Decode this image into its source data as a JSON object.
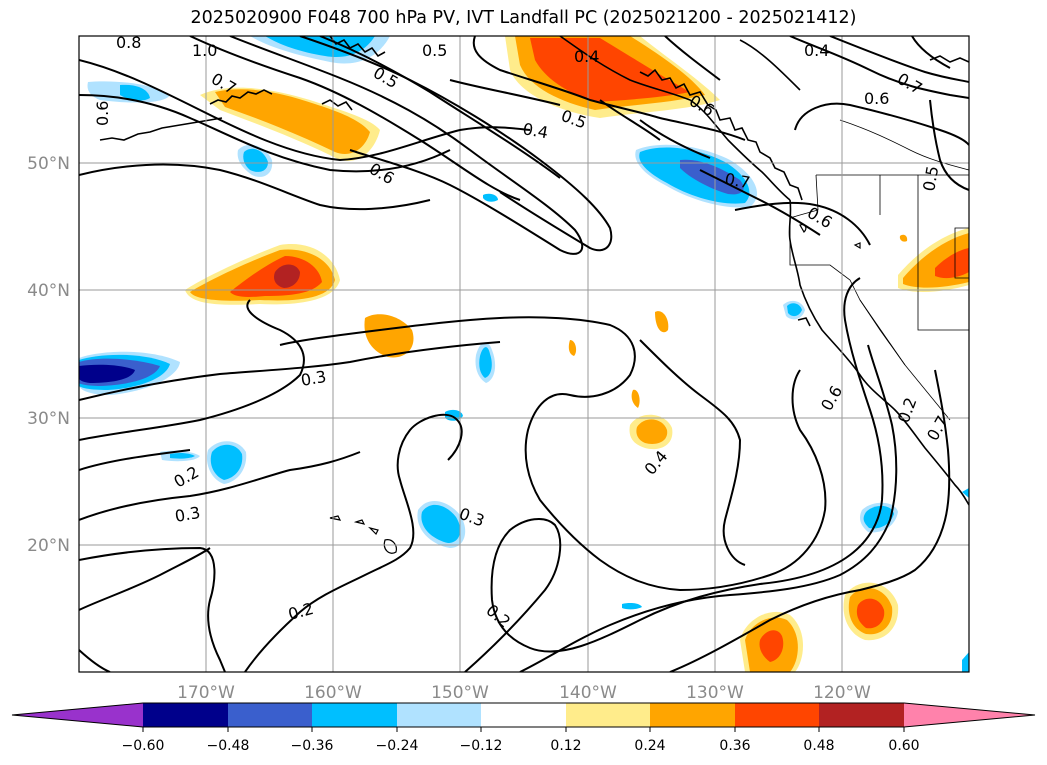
{
  "title": "2025020900 F048 700 hPa PV, IVT Landfall PC (2025021200 - 2025021412)",
  "map": {
    "lon_labels": [
      "170°W",
      "160°W",
      "150°W",
      "140°W",
      "130°W",
      "120°W"
    ],
    "lat_labels": [
      "50°N",
      "40°N",
      "30°N",
      "20°N"
    ],
    "contour_labels": [
      "0.8",
      "1.0",
      "0.5",
      "0.4",
      "0.4",
      "0.7",
      "0.6",
      "0.6",
      "0.7",
      "0.5",
      "0.4",
      "0.5",
      "0.6",
      "0.7",
      "0.6",
      "0.5",
      "0.6",
      "0.3",
      "0.2",
      "0.3",
      "0.3",
      "0.2",
      "0.2",
      "0.4",
      "0.6",
      "0.2",
      "0.7"
    ]
  },
  "colorbar": {
    "ticks": [
      "−0.60",
      "−0.48",
      "−0.36",
      "−0.24",
      "−0.12",
      "0.12",
      "0.24",
      "0.36",
      "0.48",
      "0.60"
    ],
    "colors": [
      "#9932cc",
      "#00008b",
      "#3a5fcd",
      "#00bfff",
      "#b0e2ff",
      "#ffffff",
      "#ffec8b",
      "#ffa500",
      "#ff4500",
      "#b22222",
      "#ff82ab"
    ]
  },
  "shading_colors": {
    "neg_light": "#b0e2ff",
    "neg_mid": "#00bfff",
    "neg_dark": "#3a5fcd",
    "neg_darkest": "#00008b",
    "pos_light": "#ffec8b",
    "pos_mid": "#ffa500",
    "pos_dark": "#ff4500",
    "pos_darkest": "#b22222"
  }
}
